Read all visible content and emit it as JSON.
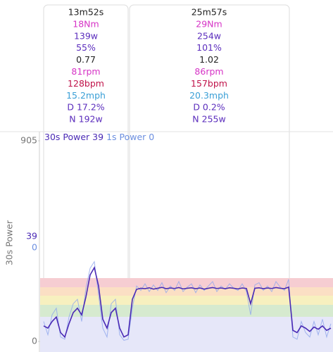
{
  "intervals": [
    {
      "rows": [
        "13m52s",
        "18Nm",
        "139w",
        "55%",
        "0.77",
        "81rpm",
        "128bpm",
        "15.2mph",
        "D 17.2%",
        "N 192w"
      ]
    },
    {
      "rows": [
        "25m57s",
        "29Nm",
        "254w",
        "101%",
        "1.02",
        "86rpm",
        "157bpm",
        "20.3mph",
        "D 0.2%",
        "N 255w"
      ]
    }
  ],
  "row_colors": [
    "#222222",
    "#d633c6",
    "#5b2dbd",
    "#5b2dbd",
    "#222222",
    "#d633c6",
    "#c0144a",
    "#3a9fd6",
    "#5b2dbd",
    "#5b2dbd"
  ],
  "chart_data": {
    "type": "line",
    "ylabel": "30s Power",
    "ylim": [
      0,
      905
    ],
    "yticks": [
      0,
      905
    ],
    "series": [
      {
        "name": "30s Power",
        "color": "#4a2ab5",
        "current": 39,
        "values": [
          70,
          60,
          90,
          110,
          40,
          20,
          80,
          130,
          150,
          120,
          200,
          300,
          333,
          250,
          100,
          60,
          130,
          150,
          60,
          20,
          30,
          190,
          235,
          240,
          238,
          242,
          236,
          240,
          244,
          238,
          241,
          239,
          243,
          237,
          240,
          242,
          238,
          241,
          236,
          240,
          243,
          239,
          241,
          238,
          242,
          240,
          237,
          241,
          239,
          170,
          240,
          242,
          238,
          241,
          239,
          243,
          240,
          238,
          245,
          50,
          40,
          70,
          60,
          45,
          65,
          55,
          70,
          50,
          60
        ]
      },
      {
        "name": "1s Power",
        "color": "#8fa6ec",
        "current": 0,
        "values": [
          90,
          30,
          120,
          150,
          20,
          10,
          110,
          170,
          190,
          90,
          240,
          330,
          360,
          210,
          60,
          20,
          170,
          190,
          30,
          5,
          10,
          150,
          250,
          230,
          260,
          225,
          255,
          230,
          265,
          220,
          250,
          230,
          270,
          225,
          245,
          260,
          220,
          255,
          230,
          250,
          270,
          225,
          250,
          235,
          260,
          240,
          230,
          260,
          225,
          120,
          255,
          265,
          230,
          250,
          225,
          270,
          245,
          230,
          280,
          20,
          10,
          90,
          40,
          20,
          90,
          30,
          100,
          20,
          80
        ]
      }
    ]
  }
}
